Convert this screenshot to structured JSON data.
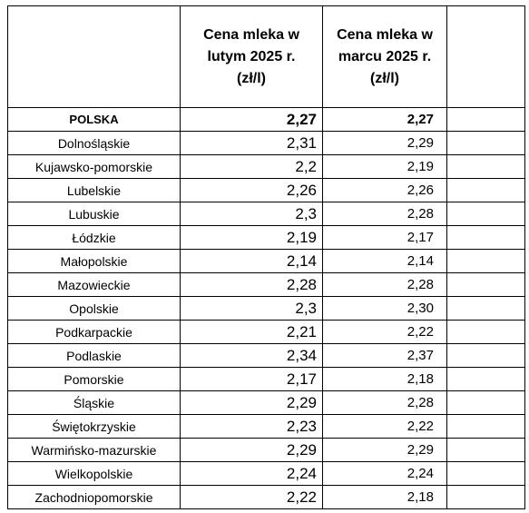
{
  "table": {
    "header": [
      "Cena mleka w lutym 2025 r. (zł/l)",
      "Cena mleka w marcu 2025 r. (zł/l)"
    ],
    "rows": [
      [
        "POLSKA",
        "2,27",
        "2,27"
      ],
      [
        "Dolnośląskie",
        "2,31",
        "2,29"
      ],
      [
        "Kujawsko-pomorskie",
        "2,2",
        "2,19"
      ],
      [
        "Lubelskie",
        "2,26",
        "2,26"
      ],
      [
        "Lubuskie",
        "2,3",
        "2,28"
      ],
      [
        "Łódzkie",
        "2,19",
        "2,17"
      ],
      [
        "Małopolskie",
        "2,14",
        "2,14"
      ],
      [
        "Mazowieckie",
        "2,28",
        "2,28"
      ],
      [
        "Opolskie",
        "2,3",
        "2,30"
      ],
      [
        "Podkarpackie",
        "2,21",
        "2,22"
      ],
      [
        "Podlaskie",
        "2,34",
        "2,37"
      ],
      [
        "Pomorskie",
        "2,17",
        "2,18"
      ],
      [
        "Śląskie",
        "2,29",
        "2,28"
      ],
      [
        "Świętokrzyskie",
        "2,23",
        "2,22"
      ],
      [
        "Warmińsko-mazurskie",
        "2,29",
        "2,29"
      ],
      [
        "Wielkopolskie",
        "2,24",
        "2,24"
      ],
      [
        "Zachodniopomorskie",
        "2,22",
        "2,18"
      ]
    ]
  }
}
